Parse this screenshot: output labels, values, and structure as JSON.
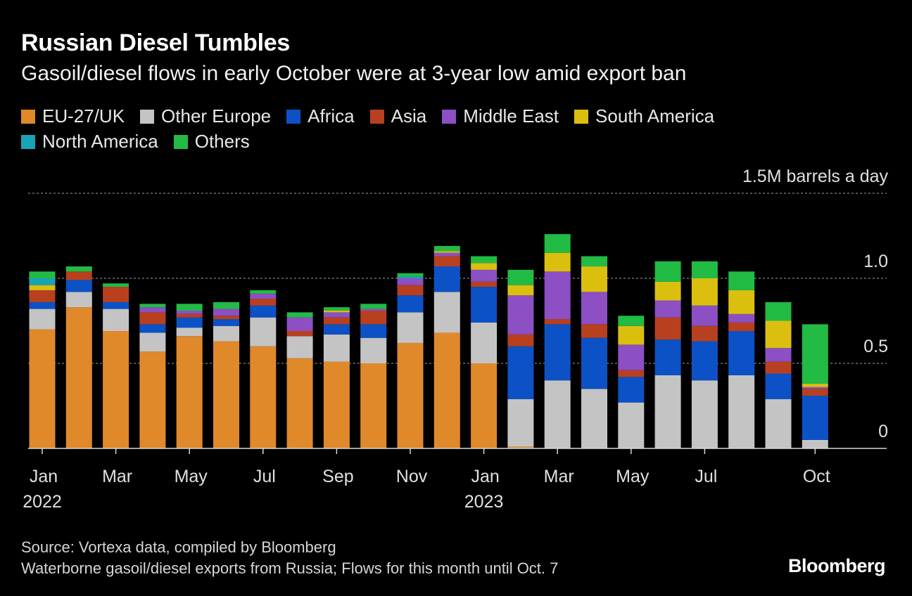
{
  "title": "Russian Diesel Tumbles",
  "subtitle": "Gasoil/diesel flows in early October were at 3-year low amid export ban",
  "legend": [
    {
      "label": "EU-27/UK",
      "color": "#e0892a"
    },
    {
      "label": "Other Europe",
      "color": "#c4c4c4"
    },
    {
      "label": "Africa",
      "color": "#0c52c6"
    },
    {
      "label": "Asia",
      "color": "#b8401f"
    },
    {
      "label": "Middle East",
      "color": "#8c4fc4"
    },
    {
      "label": "South America",
      "color": "#dbbf0f"
    },
    {
      "label": "North America",
      "color": "#18a4b8"
    },
    {
      "label": "Others",
      "color": "#22bb44"
    }
  ],
  "source": "Source: Vortexa data, compiled by Bloomberg",
  "note": "Waterborne gasoil/diesel exports from Russia; Flows for this month until Oct. 7",
  "brand": "Bloomberg",
  "chart_data": {
    "type": "bar",
    "stacked": true,
    "title": "Russian Diesel Tumbles",
    "ylabel": "1.5M barrels a day",
    "ylim": [
      0,
      1.5
    ],
    "yticks": [
      {
        "value": 1.5,
        "label": "1.5M barrels a day"
      },
      {
        "value": 1.0,
        "label": "1.0"
      },
      {
        "value": 0.5,
        "label": "0.5"
      },
      {
        "value": 0,
        "label": "0"
      }
    ],
    "xticks": [
      {
        "index": 0,
        "label": "Jan",
        "sublabel": "2022"
      },
      {
        "index": 2,
        "label": "Mar",
        "sublabel": ""
      },
      {
        "index": 4,
        "label": "May",
        "sublabel": ""
      },
      {
        "index": 6,
        "label": "Jul",
        "sublabel": ""
      },
      {
        "index": 8,
        "label": "Sep",
        "sublabel": ""
      },
      {
        "index": 10,
        "label": "Nov",
        "sublabel": ""
      },
      {
        "index": 12,
        "label": "Jan",
        "sublabel": "2023"
      },
      {
        "index": 14,
        "label": "Mar",
        "sublabel": ""
      },
      {
        "index": 16,
        "label": "May",
        "sublabel": ""
      },
      {
        "index": 18,
        "label": "Jul",
        "sublabel": ""
      },
      {
        "index": 21,
        "label": "Oct",
        "sublabel": ""
      }
    ],
    "categories": [
      "Jan 2022",
      "Feb 2022",
      "Mar 2022",
      "Apr 2022",
      "May 2022",
      "Jun 2022",
      "Jul 2022",
      "Aug 2022",
      "Sep 2022",
      "Oct 2022",
      "Nov 2022",
      "Dec 2022",
      "Jan 2023",
      "Feb 2023",
      "Mar 2023",
      "Apr 2023",
      "May 2023",
      "Jun 2023",
      "Jul 2023",
      "Aug 2023",
      "Sep 2023",
      "Oct 2023"
    ],
    "series": [
      {
        "name": "EU-27/UK",
        "values": [
          0.7,
          0.83,
          0.69,
          0.57,
          0.66,
          0.63,
          0.6,
          0.53,
          0.51,
          0.5,
          0.62,
          0.68,
          0.5,
          0.01,
          0,
          0,
          0,
          0,
          0,
          0,
          0,
          0
        ]
      },
      {
        "name": "Other Europe",
        "values": [
          0.12,
          0.09,
          0.13,
          0.11,
          0.05,
          0.09,
          0.17,
          0.13,
          0.16,
          0.15,
          0.18,
          0.24,
          0.24,
          0.28,
          0.4,
          0.35,
          0.27,
          0.43,
          0.4,
          0.43,
          0.29,
          0.05
        ]
      },
      {
        "name": "Africa",
        "values": [
          0.04,
          0.07,
          0.04,
          0.05,
          0.06,
          0.04,
          0.07,
          0.0,
          0.06,
          0.08,
          0.1,
          0.15,
          0.21,
          0.31,
          0.33,
          0.3,
          0.15,
          0.21,
          0.23,
          0.26,
          0.15,
          0.26
        ]
      },
      {
        "name": "Asia",
        "values": [
          0.07,
          0.05,
          0.09,
          0.07,
          0.02,
          0.02,
          0.04,
          0.03,
          0.04,
          0.08,
          0.06,
          0.06,
          0.03,
          0.07,
          0.03,
          0.08,
          0.04,
          0.13,
          0.09,
          0.05,
          0.07,
          0.04
        ]
      },
      {
        "name": "Middle East",
        "values": [
          0,
          0,
          0,
          0.03,
          0.02,
          0.04,
          0.03,
          0.08,
          0.03,
          0.01,
          0.04,
          0.02,
          0.07,
          0.23,
          0.28,
          0.19,
          0.15,
          0.1,
          0.12,
          0.05,
          0.08,
          0.01
        ]
      },
      {
        "name": "South America",
        "values": [
          0.03,
          0,
          0,
          0,
          0,
          0,
          0,
          0,
          0.01,
          0,
          0,
          0.01,
          0.04,
          0.06,
          0.11,
          0.15,
          0.11,
          0.11,
          0.16,
          0.14,
          0.16,
          0.02
        ]
      },
      {
        "name": "North America",
        "values": [
          0.04,
          0,
          0,
          0,
          0,
          0,
          0,
          0,
          0,
          0,
          0.01,
          0,
          0,
          0,
          0,
          0,
          0,
          0,
          0,
          0,
          0,
          0
        ]
      },
      {
        "name": "Others",
        "values": [
          0.04,
          0.03,
          0.02,
          0.02,
          0.04,
          0.04,
          0.02,
          0.03,
          0.02,
          0.03,
          0.02,
          0.03,
          0.04,
          0.09,
          0.11,
          0.06,
          0.06,
          0.12,
          0.1,
          0.11,
          0.11,
          0.35
        ]
      }
    ]
  }
}
